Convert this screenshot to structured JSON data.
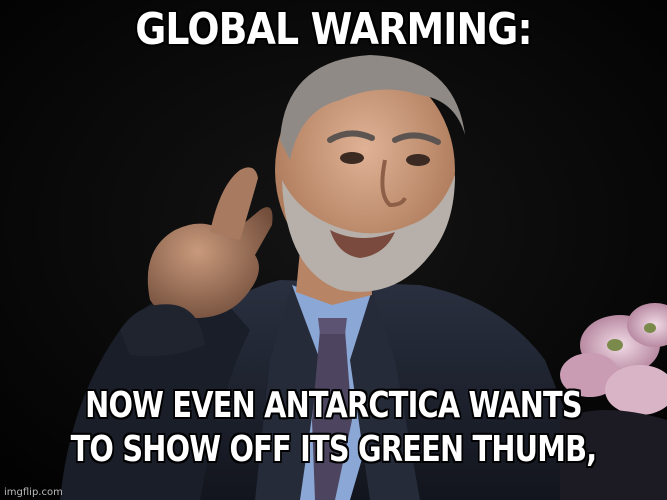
{
  "meme": {
    "top_text": "GLOBAL WARMING:",
    "bottom_text_line1": "NOW EVEN ANTARCTICA WANTS",
    "bottom_text_line2": "TO SHOW OFF ITS GREEN THUMB,",
    "watermark": "imgflip.com"
  },
  "colors": {
    "background": "#050505",
    "caption_fill": "#ffffff",
    "caption_outline": "#000000",
    "suit": "#1f2430",
    "shirt": "#8aa7d6",
    "tie": "#4d4560",
    "skin": "#c99a7c",
    "hair": "#8f8a85",
    "flowers": "#d9b4c7"
  }
}
